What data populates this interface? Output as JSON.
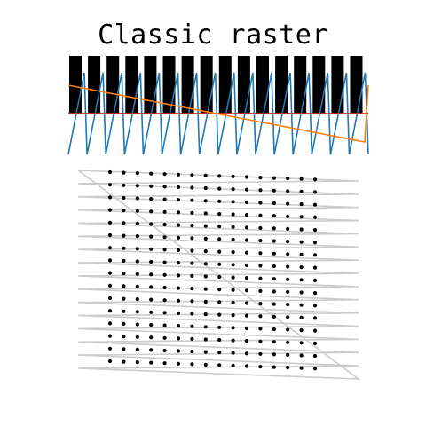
{
  "title": "Classic raster",
  "colors": {
    "waveform_blue": "#1f77b4",
    "ramp_orange": "#ff7f0e",
    "baseline_red": "#d62728",
    "pixel_gate_black": "#000000",
    "path_gray": "#cccccc",
    "sample_dot": "#000000"
  },
  "timing": {
    "pixel_gates": 16,
    "line_sweeps": 16
  },
  "grid": {
    "rows": 16,
    "cols": 16
  }
}
